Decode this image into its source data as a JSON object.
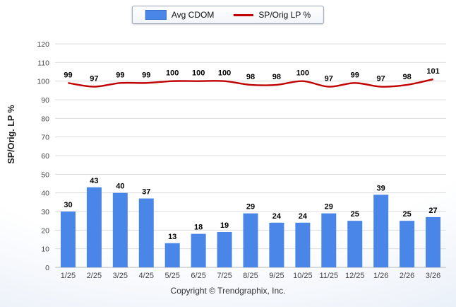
{
  "chart_data": {
    "type": "bar",
    "categories": [
      "1/25",
      "2/25",
      "3/25",
      "4/25",
      "5/25",
      "6/25",
      "7/25",
      "8/25",
      "9/25",
      "10/25",
      "11/25",
      "12/25",
      "1/26",
      "2/26",
      "3/26"
    ],
    "series": [
      {
        "name": "Avg CDOM",
        "type": "bar",
        "color": "#4a86e8",
        "values": [
          30,
          43,
          40,
          37,
          13,
          18,
          19,
          29,
          24,
          24,
          29,
          25,
          39,
          25,
          27
        ]
      },
      {
        "name": "SP/Orig LP %",
        "type": "line",
        "color": "#c00000",
        "values": [
          99,
          97,
          99,
          99,
          100,
          100,
          100,
          98,
          98,
          100,
          97,
          99,
          97,
          98,
          101
        ]
      }
    ],
    "title": "",
    "xlabel": "",
    "ylabel": "SP/Orig. LP %",
    "ylim": [
      0,
      120
    ],
    "ytick_step": 10,
    "grid": true,
    "legend_position": "top"
  },
  "footer": {
    "copyright": "Copyright © Trendgraphix, Inc."
  }
}
